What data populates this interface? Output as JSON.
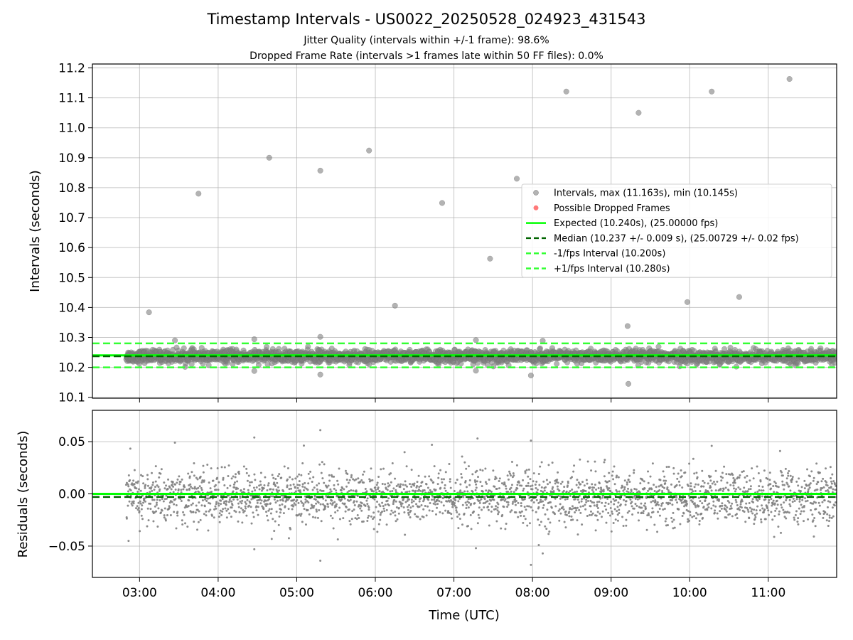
{
  "chart_data": {
    "title": "Timestamp Intervals - US0022_20250528_024923_431543",
    "subtitle_lines": [
      "Jitter Quality (intervals within +/-1 frame): 98.6%",
      "Dropped Frame Rate (intervals >1 frames late within 50 FF files): 0.0%"
    ],
    "xlabel": "Time (UTC)",
    "x_tick_labels": [
      "03:00",
      "04:00",
      "05:00",
      "06:00",
      "07:00",
      "08:00",
      "09:00",
      "10:00",
      "11:00"
    ],
    "x_range_hours": [
      2.4,
      11.87
    ],
    "data_time_range_hours": [
      2.83,
      11.87
    ],
    "grid": true,
    "colors": {
      "intervals": "#808080",
      "dropped": "#ff4040",
      "expected": "#00ff00",
      "median": "#006400",
      "fps_bounds": "#33ff33"
    },
    "panels": [
      {
        "type": "scatter",
        "ylabel": "Intervals (seconds)",
        "ylim": [
          10.097,
          11.213
        ],
        "y_ticks": [
          "10.1",
          "10.2",
          "10.3",
          "10.4",
          "10.5",
          "10.6",
          "10.7",
          "10.8",
          "10.9",
          "11.0",
          "11.1",
          "11.2"
        ],
        "legend_position": "center-right",
        "legend": [
          {
            "label": "Intervals, max (11.163s), min (10.145s)",
            "style": "marker-gray"
          },
          {
            "label": "Possible Dropped Frames",
            "style": "marker-red"
          },
          {
            "label": "Expected (10.240s), (25.00000 fps)",
            "style": "line-expected"
          },
          {
            "label": "Median (10.237 +/- 0.009 s), (25.00729 +/- 0.02 fps)",
            "style": "line-median"
          },
          {
            "label": "-1/fps Interval (10.200s)",
            "style": "line-bound"
          },
          {
            "label": "+1/fps Interval (10.280s)",
            "style": "line-bound"
          }
        ],
        "lines": [
          {
            "name": "expected",
            "y": 10.24
          },
          {
            "name": "median",
            "y": 10.237
          },
          {
            "name": "minus_1_fps",
            "y": 10.2
          },
          {
            "name": "plus_1_fps",
            "y": 10.28
          }
        ],
        "series": [
          {
            "name": "Intervals",
            "dense_band": {
              "center": 10.237,
              "spread": 0.012,
              "count": 2800
            },
            "outliers": [
              {
                "x": 3.12,
                "y": 10.384
              },
              {
                "x": 3.75,
                "y": 10.78
              },
              {
                "x": 4.65,
                "y": 10.9
              },
              {
                "x": 5.3,
                "y": 10.857
              },
              {
                "x": 5.92,
                "y": 10.924
              },
              {
                "x": 6.25,
                "y": 10.406
              },
              {
                "x": 6.85,
                "y": 10.749
              },
              {
                "x": 7.46,
                "y": 10.563
              },
              {
                "x": 7.8,
                "y": 10.83
              },
              {
                "x": 8.43,
                "y": 11.121
              },
              {
                "x": 9.21,
                "y": 10.338
              },
              {
                "x": 9.35,
                "y": 11.05
              },
              {
                "x": 9.97,
                "y": 10.418
              },
              {
                "x": 10.28,
                "y": 11.121
              },
              {
                "x": 10.63,
                "y": 10.435
              },
              {
                "x": 11.27,
                "y": 11.163
              },
              {
                "x": 9.22,
                "y": 10.145
              },
              {
                "x": 7.98,
                "y": 10.173
              },
              {
                "x": 5.3,
                "y": 10.176
              },
              {
                "x": 5.3,
                "y": 10.302
              },
              {
                "x": 4.46,
                "y": 10.294
              },
              {
                "x": 3.45,
                "y": 10.29
              },
              {
                "x": 7.28,
                "y": 10.291
              },
              {
                "x": 8.13,
                "y": 10.289
              },
              {
                "x": 4.46,
                "y": 10.188
              },
              {
                "x": 7.28,
                "y": 10.189
              }
            ]
          }
        ]
      },
      {
        "type": "scatter",
        "ylabel": "Residuals (seconds)",
        "ylim": [
          -0.08,
          0.08
        ],
        "y_ticks": [
          "−0.05",
          "0.00",
          "0.05"
        ],
        "y_tick_values": [
          -0.05,
          0.0,
          0.05
        ],
        "lines": [
          {
            "name": "expected",
            "y": 0.0
          },
          {
            "name": "median",
            "y": -0.003
          }
        ],
        "series": [
          {
            "name": "Residuals",
            "dense_band": {
              "center": -0.003,
              "spread": 0.013,
              "count": 2600
            },
            "outliers": [
              {
                "x": 4.46,
                "y": 0.054
              },
              {
                "x": 5.3,
                "y": 0.061
              },
              {
                "x": 7.98,
                "y": 0.051
              },
              {
                "x": 5.3,
                "y": -0.064
              },
              {
                "x": 7.98,
                "y": -0.068
              },
              {
                "x": 4.46,
                "y": -0.053
              },
              {
                "x": 8.13,
                "y": -0.057
              },
              {
                "x": 8.08,
                "y": -0.049
              },
              {
                "x": 7.28,
                "y": -0.052
              },
              {
                "x": 2.86,
                "y": -0.045
              },
              {
                "x": 11.15,
                "y": 0.041
              },
              {
                "x": 10.28,
                "y": 0.046
              },
              {
                "x": 3.45,
                "y": 0.049
              },
              {
                "x": 6.72,
                "y": 0.047
              },
              {
                "x": 7.3,
                "y": 0.053
              }
            ]
          }
        ]
      }
    ]
  }
}
